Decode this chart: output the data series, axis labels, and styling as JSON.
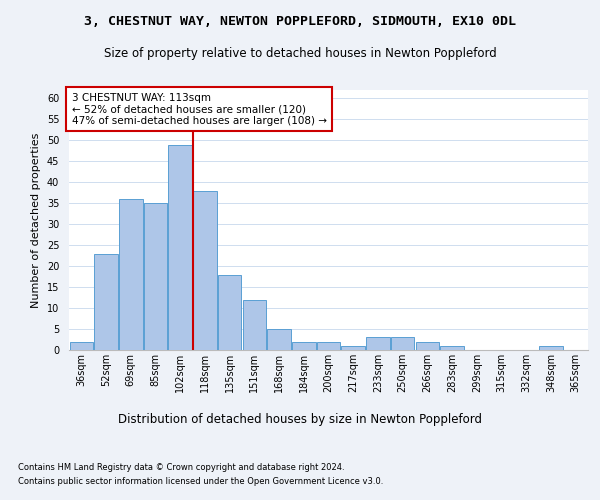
{
  "title1": "3, CHESTNUT WAY, NEWTON POPPLEFORD, SIDMOUTH, EX10 0DL",
  "title2": "Size of property relative to detached houses in Newton Poppleford",
  "xlabel": "Distribution of detached houses by size in Newton Poppleford",
  "ylabel": "Number of detached properties",
  "footer1": "Contains HM Land Registry data © Crown copyright and database right 2024.",
  "footer2": "Contains public sector information licensed under the Open Government Licence v3.0.",
  "categories": [
    "36sqm",
    "52sqm",
    "69sqm",
    "85sqm",
    "102sqm",
    "118sqm",
    "135sqm",
    "151sqm",
    "168sqm",
    "184sqm",
    "200sqm",
    "217sqm",
    "233sqm",
    "250sqm",
    "266sqm",
    "283sqm",
    "299sqm",
    "315sqm",
    "332sqm",
    "348sqm",
    "365sqm"
  ],
  "values": [
    2,
    23,
    36,
    35,
    49,
    38,
    18,
    12,
    5,
    2,
    2,
    1,
    3,
    3,
    2,
    1,
    0,
    0,
    0,
    1,
    0
  ],
  "bar_color": "#aec6e8",
  "bar_edge_color": "#5a9fd4",
  "bar_width": 0.95,
  "vline_x": 4.5,
  "vline_color": "#cc0000",
  "annotation_text": "3 CHESTNUT WAY: 113sqm\n← 52% of detached houses are smaller (120)\n47% of semi-detached houses are larger (108) →",
  "annotation_box_color": "#ffffff",
  "annotation_box_edge": "#cc0000",
  "ylim": [
    0,
    62
  ],
  "yticks": [
    0,
    5,
    10,
    15,
    20,
    25,
    30,
    35,
    40,
    45,
    50,
    55,
    60
  ],
  "bg_color": "#eef2f8",
  "plot_bg": "#ffffff",
  "title1_fontsize": 9.5,
  "title2_fontsize": 8.5,
  "xlabel_fontsize": 8.5,
  "ylabel_fontsize": 8,
  "tick_fontsize": 7,
  "ann_fontsize": 7.5,
  "footer_fontsize": 6
}
